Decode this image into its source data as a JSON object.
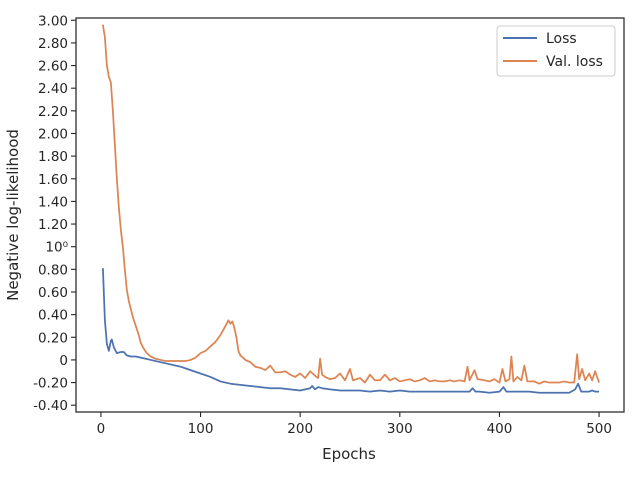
{
  "chart_data": {
    "type": "line",
    "xlabel": "Epochs",
    "ylabel": "Negative log-likelihood",
    "xlim": [
      -25,
      525
    ],
    "ylim": [
      -0.46,
      3.02
    ],
    "x_ticks": [
      0,
      100,
      200,
      300,
      400,
      500
    ],
    "y_ticks": [
      {
        "value": -0.4,
        "label": "-0.40"
      },
      {
        "value": -0.2,
        "label": "-0.20"
      },
      {
        "value": 0,
        "label": "0"
      },
      {
        "value": 0.2,
        "label": "0.20"
      },
      {
        "value": 0.4,
        "label": "0.40"
      },
      {
        "value": 0.6,
        "label": "0.60"
      },
      {
        "value": 0.8,
        "label": "0.80"
      },
      {
        "value": 1.0,
        "label": "10⁰"
      },
      {
        "value": 1.2,
        "label": "1.20"
      },
      {
        "value": 1.4,
        "label": "1.40"
      },
      {
        "value": 1.6,
        "label": "1.60"
      },
      {
        "value": 1.8,
        "label": "1.80"
      },
      {
        "value": 2.0,
        "label": "2.00"
      },
      {
        "value": 2.2,
        "label": "2.20"
      },
      {
        "value": 2.4,
        "label": "2.40"
      },
      {
        "value": 2.6,
        "label": "2.60"
      },
      {
        "value": 2.8,
        "label": "2.80"
      },
      {
        "value": 3.0,
        "label": "3.00"
      }
    ],
    "grid": false,
    "legend_position": "top-right",
    "series": [
      {
        "name": "Loss",
        "color": "#4c72b0",
        "points": [
          [
            2,
            0.81
          ],
          [
            4,
            0.35
          ],
          [
            6,
            0.14
          ],
          [
            8,
            0.08
          ],
          [
            10,
            0.17
          ],
          [
            11,
            0.18
          ],
          [
            13,
            0.11
          ],
          [
            16,
            0.06
          ],
          [
            20,
            0.07
          ],
          [
            23,
            0.07
          ],
          [
            26,
            0.04
          ],
          [
            30,
            0.03
          ],
          [
            35,
            0.03
          ],
          [
            40,
            0.02
          ],
          [
            45,
            0.01
          ],
          [
            50,
            0.0
          ],
          [
            60,
            -0.02
          ],
          [
            70,
            -0.04
          ],
          [
            80,
            -0.06
          ],
          [
            90,
            -0.09
          ],
          [
            100,
            -0.12
          ],
          [
            110,
            -0.15
          ],
          [
            120,
            -0.19
          ],
          [
            125,
            -0.2
          ],
          [
            130,
            -0.21
          ],
          [
            140,
            -0.22
          ],
          [
            150,
            -0.23
          ],
          [
            160,
            -0.24
          ],
          [
            170,
            -0.25
          ],
          [
            180,
            -0.25
          ],
          [
            190,
            -0.26
          ],
          [
            200,
            -0.27
          ],
          [
            205,
            -0.26
          ],
          [
            210,
            -0.25
          ],
          [
            212,
            -0.23
          ],
          [
            215,
            -0.26
          ],
          [
            218,
            -0.24
          ],
          [
            222,
            -0.25
          ],
          [
            230,
            -0.26
          ],
          [
            240,
            -0.27
          ],
          [
            250,
            -0.27
          ],
          [
            260,
            -0.27
          ],
          [
            270,
            -0.28
          ],
          [
            280,
            -0.27
          ],
          [
            290,
            -0.28
          ],
          [
            300,
            -0.27
          ],
          [
            310,
            -0.28
          ],
          [
            320,
            -0.28
          ],
          [
            330,
            -0.28
          ],
          [
            340,
            -0.28
          ],
          [
            350,
            -0.28
          ],
          [
            360,
            -0.28
          ],
          [
            370,
            -0.28
          ],
          [
            373,
            -0.25
          ],
          [
            376,
            -0.28
          ],
          [
            380,
            -0.28
          ],
          [
            390,
            -0.29
          ],
          [
            400,
            -0.28
          ],
          [
            404,
            -0.24
          ],
          [
            407,
            -0.28
          ],
          [
            412,
            -0.28
          ],
          [
            420,
            -0.28
          ],
          [
            430,
            -0.28
          ],
          [
            440,
            -0.29
          ],
          [
            450,
            -0.29
          ],
          [
            460,
            -0.29
          ],
          [
            470,
            -0.29
          ],
          [
            476,
            -0.26
          ],
          [
            479,
            -0.21
          ],
          [
            482,
            -0.28
          ],
          [
            486,
            -0.28
          ],
          [
            490,
            -0.28
          ],
          [
            493,
            -0.27
          ],
          [
            496,
            -0.28
          ],
          [
            500,
            -0.28
          ]
        ]
      },
      {
        "name": "Val. loss",
        "color": "#dd8452",
        "points": [
          [
            2,
            2.96
          ],
          [
            4,
            2.85
          ],
          [
            6,
            2.6
          ],
          [
            8,
            2.5
          ],
          [
            10,
            2.45
          ],
          [
            12,
            2.2
          ],
          [
            14,
            1.9
          ],
          [
            16,
            1.6
          ],
          [
            18,
            1.35
          ],
          [
            20,
            1.15
          ],
          [
            22,
            1.0
          ],
          [
            24,
            0.8
          ],
          [
            26,
            0.62
          ],
          [
            28,
            0.52
          ],
          [
            30,
            0.45
          ],
          [
            32,
            0.38
          ],
          [
            35,
            0.3
          ],
          [
            38,
            0.22
          ],
          [
            40,
            0.15
          ],
          [
            43,
            0.1
          ],
          [
            46,
            0.06
          ],
          [
            50,
            0.03
          ],
          [
            55,
            0.01
          ],
          [
            60,
            0.0
          ],
          [
            65,
            -0.01
          ],
          [
            70,
            -0.01
          ],
          [
            75,
            -0.01
          ],
          [
            80,
            -0.01
          ],
          [
            85,
            -0.01
          ],
          [
            90,
            0.0
          ],
          [
            95,
            0.02
          ],
          [
            100,
            0.06
          ],
          [
            105,
            0.08
          ],
          [
            110,
            0.12
          ],
          [
            115,
            0.16
          ],
          [
            120,
            0.22
          ],
          [
            125,
            0.3
          ],
          [
            128,
            0.35
          ],
          [
            130,
            0.32
          ],
          [
            132,
            0.34
          ],
          [
            134,
            0.28
          ],
          [
            136,
            0.2
          ],
          [
            138,
            0.08
          ],
          [
            140,
            0.04
          ],
          [
            145,
            0.0
          ],
          [
            150,
            -0.02
          ],
          [
            155,
            -0.06
          ],
          [
            160,
            -0.07
          ],
          [
            165,
            -0.09
          ],
          [
            170,
            -0.05
          ],
          [
            175,
            -0.11
          ],
          [
            180,
            -0.11
          ],
          [
            185,
            -0.1
          ],
          [
            190,
            -0.13
          ],
          [
            195,
            -0.15
          ],
          [
            200,
            -0.12
          ],
          [
            205,
            -0.16
          ],
          [
            210,
            -0.1
          ],
          [
            215,
            -0.14
          ],
          [
            218,
            -0.16
          ],
          [
            220,
            0.01
          ],
          [
            222,
            -0.13
          ],
          [
            225,
            -0.15
          ],
          [
            230,
            -0.17
          ],
          [
            235,
            -0.16
          ],
          [
            240,
            -0.12
          ],
          [
            245,
            -0.18
          ],
          [
            250,
            -0.08
          ],
          [
            253,
            -0.18
          ],
          [
            260,
            -0.16
          ],
          [
            265,
            -0.2
          ],
          [
            270,
            -0.13
          ],
          [
            275,
            -0.18
          ],
          [
            280,
            -0.18
          ],
          [
            285,
            -0.13
          ],
          [
            290,
            -0.18
          ],
          [
            295,
            -0.16
          ],
          [
            300,
            -0.19
          ],
          [
            305,
            -0.18
          ],
          [
            310,
            -0.17
          ],
          [
            315,
            -0.19
          ],
          [
            320,
            -0.18
          ],
          [
            325,
            -0.16
          ],
          [
            330,
            -0.19
          ],
          [
            335,
            -0.18
          ],
          [
            340,
            -0.19
          ],
          [
            345,
            -0.19
          ],
          [
            350,
            -0.18
          ],
          [
            355,
            -0.19
          ],
          [
            360,
            -0.18
          ],
          [
            365,
            -0.19
          ],
          [
            368,
            -0.06
          ],
          [
            370,
            -0.18
          ],
          [
            375,
            -0.09
          ],
          [
            378,
            -0.17
          ],
          [
            385,
            -0.18
          ],
          [
            390,
            -0.19
          ],
          [
            395,
            -0.17
          ],
          [
            400,
            -0.2
          ],
          [
            403,
            -0.08
          ],
          [
            406,
            -0.19
          ],
          [
            410,
            -0.17
          ],
          [
            412,
            0.03
          ],
          [
            414,
            -0.19
          ],
          [
            418,
            -0.15
          ],
          [
            422,
            -0.18
          ],
          [
            425,
            -0.05
          ],
          [
            428,
            -0.19
          ],
          [
            435,
            -0.19
          ],
          [
            440,
            -0.21
          ],
          [
            445,
            -0.19
          ],
          [
            450,
            -0.2
          ],
          [
            455,
            -0.2
          ],
          [
            460,
            -0.2
          ],
          [
            465,
            -0.19
          ],
          [
            470,
            -0.2
          ],
          [
            475,
            -0.2
          ],
          [
            478,
            0.05
          ],
          [
            480,
            -0.17
          ],
          [
            483,
            -0.08
          ],
          [
            486,
            -0.18
          ],
          [
            490,
            -0.12
          ],
          [
            493,
            -0.18
          ],
          [
            496,
            -0.1
          ],
          [
            500,
            -0.2
          ]
        ]
      }
    ]
  }
}
